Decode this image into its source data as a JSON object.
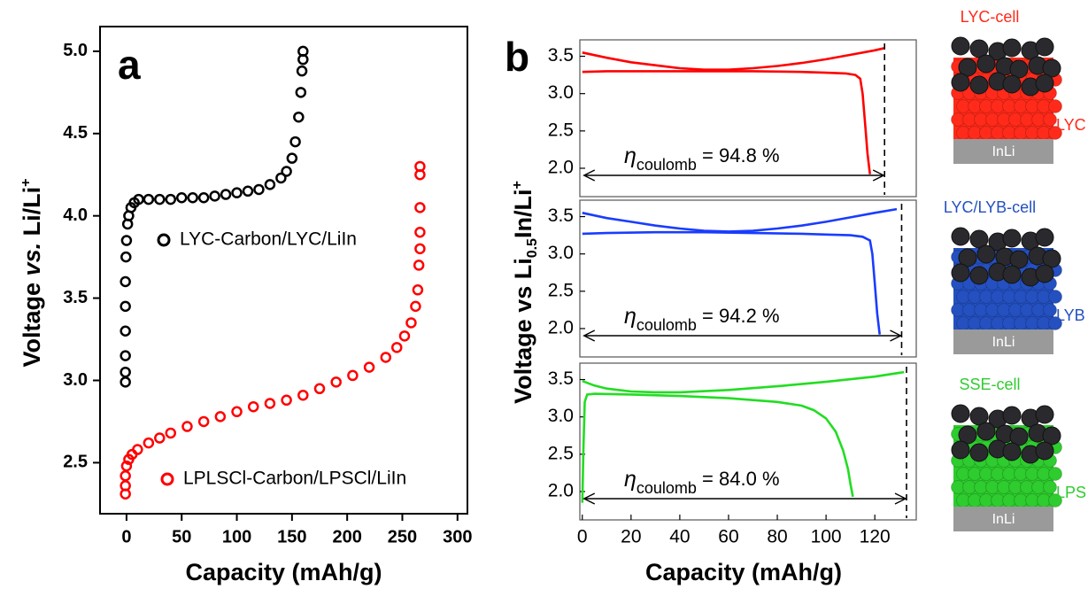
{
  "chart_data": [
    {
      "type": "scatter",
      "panel_label": "a",
      "x_label": "Capacity (mAh/g)",
      "y_label": [
        "Voltage ",
        "vs.",
        " Li/Li",
        "+"
      ],
      "xlim": [
        -24,
        309
      ],
      "ylim": [
        2.19,
        5.15
      ],
      "xticks": [
        0,
        50,
        100,
        150,
        200,
        250,
        300
      ],
      "yticks": [
        2.5,
        {
          "value": 3,
          "label": "3.0"
        },
        3.5,
        {
          "value": 4,
          "label": "4.0"
        },
        4.5,
        {
          "value": 5,
          "label": "5.0"
        }
      ],
      "series": [
        {
          "name": "LYC-Carbon/LYC/LiIn",
          "color": "#000000",
          "x": [
            -1,
            -1,
            -1,
            -1,
            -1,
            -1,
            -0.5,
            0,
            1,
            2,
            4,
            7,
            11,
            20,
            30,
            40,
            50,
            60,
            70,
            80,
            90,
            100,
            110,
            120,
            130,
            140,
            145,
            150,
            153,
            156,
            158,
            159,
            160,
            160
          ],
          "values": [
            2.99,
            3.05,
            3.15,
            3.3,
            3.45,
            3.6,
            3.75,
            3.85,
            3.95,
            4.0,
            4.05,
            4.08,
            4.1,
            4.1,
            4.1,
            4.1,
            4.11,
            4.11,
            4.11,
            4.12,
            4.13,
            4.14,
            4.15,
            4.16,
            4.19,
            4.23,
            4.27,
            4.35,
            4.45,
            4.6,
            4.75,
            4.88,
            4.95,
            5.0
          ]
        },
        {
          "name": "LPLSCl-Carbon/LPSCl/LiIn",
          "color": "#ff0000",
          "x": [
            -1,
            -1,
            -1,
            0,
            2,
            5,
            10,
            20,
            30,
            40,
            55,
            70,
            85,
            100,
            115,
            130,
            145,
            160,
            175,
            190,
            205,
            220,
            235,
            245,
            252,
            258,
            262,
            264,
            265,
            266,
            266,
            266,
            266,
            266
          ],
          "values": [
            2.31,
            2.36,
            2.42,
            2.48,
            2.52,
            2.55,
            2.58,
            2.62,
            2.65,
            2.68,
            2.72,
            2.75,
            2.78,
            2.81,
            2.84,
            2.86,
            2.88,
            2.91,
            2.95,
            2.99,
            3.03,
            3.08,
            3.14,
            3.2,
            3.27,
            3.35,
            3.45,
            3.55,
            3.7,
            3.8,
            3.9,
            4.05,
            4.25,
            4.3
          ]
        }
      ]
    },
    {
      "type": "line",
      "panel_label": "b",
      "y_label": [
        "Voltage vs Li",
        "0.5",
        "In/Li",
        "+"
      ],
      "xlim": [
        -1,
        137
      ],
      "ylim": [
        1.62,
        3.72
      ],
      "yticks": [
        {
          "value": 2,
          "label": "2.0"
        },
        2.5,
        {
          "value": 3,
          "label": "3.0"
        },
        3.5
      ],
      "vline": 124,
      "annotation": [
        "η",
        "coulomb",
        " = 94.8 %"
      ],
      "series": [
        {
          "color": "#ff0000",
          "x": [
            0,
            10,
            30,
            50,
            70,
            90,
            100,
            108,
            112,
            114,
            115,
            116,
            117,
            118
          ],
          "values": [
            3.29,
            3.3,
            3.3,
            3.3,
            3.3,
            3.29,
            3.28,
            3.27,
            3.25,
            3.2,
            3.0,
            2.6,
            2.2,
            1.92
          ]
        },
        {
          "color": "#ff0000",
          "x": [
            0,
            10,
            20,
            30,
            40,
            50,
            60,
            70,
            80,
            90,
            100,
            110,
            120,
            124
          ],
          "values": [
            3.55,
            3.48,
            3.42,
            3.38,
            3.34,
            3.32,
            3.32,
            3.34,
            3.37,
            3.41,
            3.46,
            3.52,
            3.58,
            3.61
          ]
        }
      ]
    },
    {
      "type": "line",
      "xlim": [
        -1,
        137
      ],
      "ylim": [
        1.62,
        3.72
      ],
      "yticks": [
        {
          "value": 2,
          "label": "2.0"
        },
        2.5,
        {
          "value": 3,
          "label": "3.0"
        },
        3.5
      ],
      "vline": 131,
      "annotation": [
        "η",
        "coulomb",
        " = 94.2 %"
      ],
      "series": [
        {
          "color": "#1a3cff",
          "x": [
            0,
            10,
            30,
            50,
            70,
            90,
            100,
            110,
            115,
            118,
            119,
            120,
            121,
            122
          ],
          "values": [
            3.27,
            3.28,
            3.29,
            3.29,
            3.28,
            3.27,
            3.26,
            3.25,
            3.23,
            3.18,
            3.0,
            2.6,
            2.2,
            1.92
          ]
        },
        {
          "color": "#1a3cff",
          "x": [
            0,
            10,
            20,
            30,
            40,
            50,
            60,
            70,
            80,
            90,
            100,
            110,
            120,
            129
          ],
          "values": [
            3.55,
            3.48,
            3.43,
            3.38,
            3.34,
            3.31,
            3.3,
            3.31,
            3.34,
            3.38,
            3.43,
            3.49,
            3.55,
            3.6
          ]
        }
      ]
    },
    {
      "type": "line",
      "x_label": "Capacity (mAh/g)",
      "xlim": [
        -1,
        137
      ],
      "ylim": [
        1.62,
        3.72
      ],
      "xticks": [
        0,
        20,
        40,
        60,
        80,
        100,
        120
      ],
      "yticks": [
        {
          "value": 2,
          "label": "2.0"
        },
        2.5,
        {
          "value": 3,
          "label": "3.0"
        },
        3.5
      ],
      "vline": 133,
      "annotation": [
        "η",
        "coulomb",
        " = 84.0 %"
      ],
      "series": [
        {
          "color": "#22dd22",
          "x": [
            0,
            0.5,
            1,
            2,
            5,
            20,
            40,
            60,
            80,
            90,
            95,
            100,
            104,
            107,
            109,
            110,
            111
          ],
          "values": [
            1.85,
            2.6,
            3.2,
            3.3,
            3.31,
            3.3,
            3.28,
            3.25,
            3.2,
            3.15,
            3.09,
            2.98,
            2.8,
            2.55,
            2.3,
            2.1,
            1.93
          ]
        },
        {
          "color": "#22dd22",
          "x": [
            0,
            5,
            10,
            20,
            30,
            40,
            60,
            80,
            100,
            120,
            132
          ],
          "values": [
            3.48,
            3.42,
            3.38,
            3.34,
            3.33,
            3.33,
            3.36,
            3.41,
            3.47,
            3.54,
            3.6
          ]
        }
      ]
    }
  ],
  "diagrams": [
    {
      "title": "LYC-cell",
      "layer": "LYC",
      "base": "InLi",
      "color": "#ff2a1a"
    },
    {
      "title": "LYC/LYB-cell",
      "layer": "LYB",
      "base": "InLi",
      "color": "#2450c0"
    },
    {
      "title": "SSE-cell",
      "layer": "LPS",
      "base": "InLi",
      "color": "#2ecc2e"
    }
  ]
}
